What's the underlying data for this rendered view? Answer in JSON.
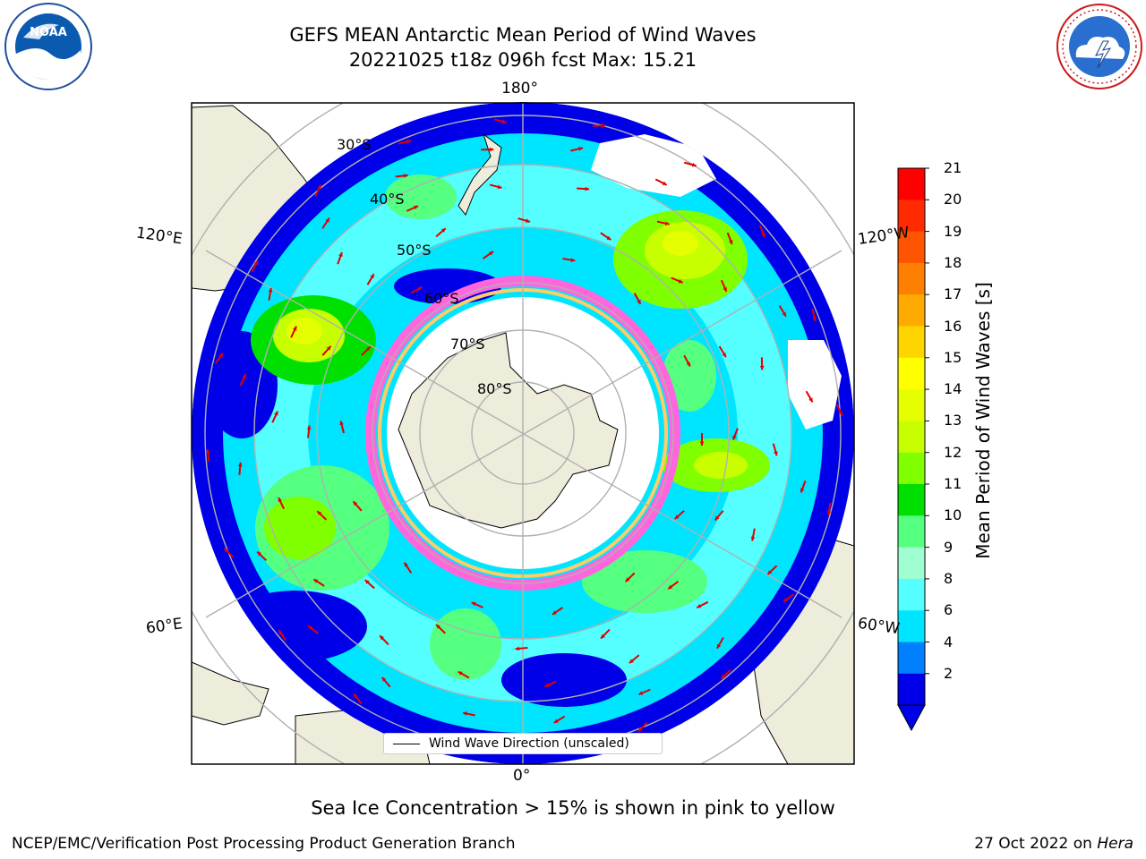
{
  "title_line1": "GEFS MEAN Antarctic Mean Period of Wind Waves",
  "title_line2": "20221025 t18z 096h fcst   Max: 15.21",
  "logos": {
    "left": "NOAA",
    "right": "NATIONAL WEATHER SERVICE"
  },
  "longitude_labels": {
    "top": "180°",
    "bottom": "0°",
    "upper_left": "120°E",
    "upper_right": "120°W",
    "lower_left": "60°E",
    "lower_right": "60°W"
  },
  "latitude_labels": [
    "30°S",
    "40°S",
    "50°S",
    "60°S",
    "70°S",
    "80°S"
  ],
  "legend_label": "Wind Wave Direction (unscaled)",
  "colorbar": {
    "label": "Mean Period of Wind Waves [s]",
    "ticks": [
      "21",
      "20",
      "19",
      "18",
      "17",
      "16",
      "15",
      "14",
      "13",
      "12",
      "11",
      "10",
      "9",
      "8",
      "6",
      "4",
      "2"
    ],
    "colors": [
      "#ff0000",
      "#ff2a00",
      "#ff5500",
      "#ff8000",
      "#ffaa00",
      "#ffd500",
      "#ffff00",
      "#e5ff00",
      "#c8ff00",
      "#80ff00",
      "#00e000",
      "#55ff80",
      "#a0ffd0",
      "#55ffff",
      "#00e5ff",
      "#0080ff",
      "#0000e8"
    ],
    "extend_color": "#0000e8"
  },
  "note": "Sea Ice Concentration > 15% is shown in pink to yellow",
  "credit": "NCEP/EMC/Verification Post Processing Product Generation Branch",
  "date_prefix": "27 Oct 2022 on ",
  "date_host": "Hera"
}
